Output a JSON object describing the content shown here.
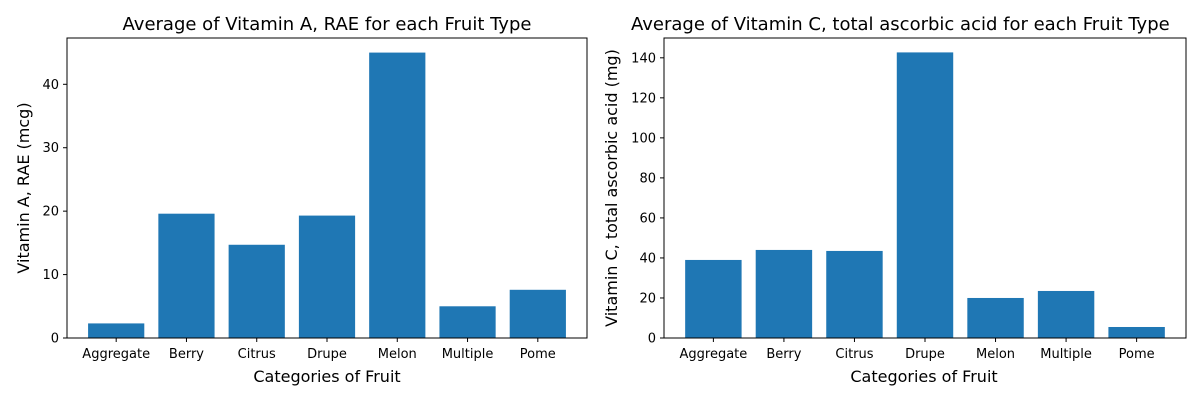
{
  "chart_data": [
    {
      "type": "bar",
      "title": "Average of Vitamin A, RAE for each Fruit Type",
      "xlabel": "Categories of Fruit",
      "ylabel": "Vitamin A, RAE (mcg)",
      "categories": [
        "Aggregate",
        "Berry",
        "Citrus",
        "Drupe",
        "Melon",
        "Multiple",
        "Pome"
      ],
      "values": [
        2.3,
        19.6,
        14.7,
        19.3,
        45.0,
        5.0,
        7.6
      ],
      "ylim": [
        0,
        47.3
      ],
      "yticks": [
        0,
        10,
        20,
        30,
        40
      ],
      "grid": false,
      "color": "#1f77b4"
    },
    {
      "type": "bar",
      "title": "Average of Vitamin C, total ascorbic acid for each Fruit Type",
      "xlabel": "Categories of Fruit",
      "ylabel": "Vitamin C, total ascorbic acid (mg)",
      "categories": [
        "Aggregate",
        "Berry",
        "Citrus",
        "Drupe",
        "Melon",
        "Multiple",
        "Pome"
      ],
      "values": [
        39.0,
        44.0,
        43.5,
        142.7,
        20.0,
        23.5,
        5.5
      ],
      "ylim": [
        0,
        149.9
      ],
      "yticks": [
        0,
        20,
        40,
        60,
        80,
        100,
        120,
        140
      ],
      "grid": false,
      "color": "#1f77b4"
    }
  ]
}
